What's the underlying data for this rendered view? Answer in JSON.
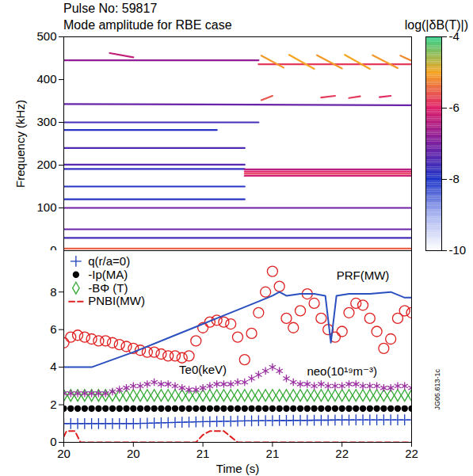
{
  "chart_data": [
    {
      "type": "spectrogram",
      "title": "Pulse No: 59817",
      "subtitle": "Mode amplitude for RBE case",
      "y_label": "Frequency (kHz)",
      "xlim": [
        20,
        22.5
      ],
      "ylim": [
        0,
        500
      ],
      "yticks": [
        0,
        100,
        200,
        300,
        400,
        500
      ],
      "tick_labels": "y",
      "colorbar": {
        "label": "log(|δB(T)|)",
        "clim": [
          -10,
          -4
        ],
        "ticks": [
          -10,
          -8,
          -6,
          -4
        ]
      },
      "modes": [
        {
          "t": [
            20,
            21.4
          ],
          "f": [
            445,
            445
          ],
          "amplitude": -6.8
        },
        {
          "t": [
            20.33,
            20.5
          ],
          "f": [
            462,
            452
          ],
          "amplitude": -6.3
        },
        {
          "t": [
            21.4,
            22.5
          ],
          "f": [
            436,
            436
          ],
          "amplitude": -5.8
        },
        {
          "t": [
            21.42,
            21.58
          ],
          "f": [
            456,
            428
          ],
          "amplitude": -5.1
        },
        {
          "t": [
            21.62,
            21.8
          ],
          "f": [
            458,
            425
          ],
          "amplitude": -5.0
        },
        {
          "t": [
            21.82,
            22.0
          ],
          "f": [
            457,
            426
          ],
          "amplitude": -5.1
        },
        {
          "t": [
            22.02,
            22.2
          ],
          "f": [
            458,
            425
          ],
          "amplitude": -5.0
        },
        {
          "t": [
            22.22,
            22.4
          ],
          "f": [
            457,
            427
          ],
          "amplitude": -5.1
        },
        {
          "t": [
            22.42,
            22.5
          ],
          "f": [
            456,
            444
          ],
          "amplitude": -5.2
        },
        {
          "t": [
            21.42,
            21.5
          ],
          "f": [
            352,
            362
          ],
          "amplitude": -5.6
        },
        {
          "t": [
            21.85,
            21.95
          ],
          "f": [
            358,
            362
          ],
          "amplitude": -5.8
        },
        {
          "t": [
            22.05,
            22.13
          ],
          "f": [
            357,
            361
          ],
          "amplitude": -5.8
        },
        {
          "t": [
            22.27,
            22.35
          ],
          "f": [
            359,
            362
          ],
          "amplitude": -5.9
        },
        {
          "t": [
            20,
            22.5
          ],
          "f": [
            343,
            340
          ],
          "amplitude": -7.2
        },
        {
          "t": [
            20,
            21.4
          ],
          "f": [
            300,
            300
          ],
          "amplitude": -7.6
        },
        {
          "t": [
            20,
            21.1
          ],
          "f": [
            282,
            282
          ],
          "amplitude": -7.9
        },
        {
          "t": [
            20,
            21.3
          ],
          "f": [
            240,
            240
          ],
          "amplitude": -7.5
        },
        {
          "t": [
            20,
            21.3
          ],
          "f": [
            201,
            201
          ],
          "amplitude": -7.4
        },
        {
          "t": [
            20,
            21.3
          ],
          "f": [
            191,
            191
          ],
          "amplitude": -7.8
        },
        {
          "t": [
            21.3,
            22.5
          ],
          "f": [
            190,
            190
          ],
          "amplitude": -6.4
        },
        {
          "t": [
            21.3,
            22.5
          ],
          "f": [
            185,
            185
          ],
          "amplitude": -6.0
        },
        {
          "t": [
            21.3,
            22.5
          ],
          "f": [
            180,
            180
          ],
          "amplitude": -5.8
        },
        {
          "t": [
            21.3,
            22.5
          ],
          "f": [
            175,
            175
          ],
          "amplitude": -6.2
        },
        {
          "t": [
            20,
            21.3
          ],
          "f": [
            150,
            150
          ],
          "amplitude": -7.9
        },
        {
          "t": [
            20,
            21.3
          ],
          "f": [
            120,
            120
          ],
          "amplitude": -7.9
        },
        {
          "t": [
            20,
            22.5
          ],
          "f": [
            100,
            100
          ],
          "amplitude": -7.1
        },
        {
          "t": [
            20,
            22.5
          ],
          "f": [
            50,
            50
          ],
          "amplitude": -7.2
        },
        {
          "t": [
            20,
            22.5
          ],
          "f": [
            30,
            30
          ],
          "amplitude": -7.6
        },
        {
          "t": [
            20,
            22.5
          ],
          "f": [
            5,
            5
          ],
          "amplitude": -5.5
        }
      ]
    },
    {
      "type": "line",
      "x_label": "Time (s)",
      "xlim": [
        20,
        22.5
      ],
      "xticks": [
        20,
        {
          "value": 20.5,
          "label": "20"
        },
        21,
        {
          "value": 21.5,
          "label": "21"
        },
        22,
        {
          "value": 22.5,
          "label": "22"
        }
      ],
      "ylim": [
        0,
        10.2
      ],
      "yticks": [
        0,
        2,
        4,
        6,
        8
      ],
      "legend": "top-left",
      "x": [
        20,
        20.05,
        20.1,
        20.15,
        20.2,
        20.25,
        20.3,
        20.35,
        20.4,
        20.45,
        20.5,
        20.55,
        20.6,
        20.65,
        20.7,
        20.75,
        20.8,
        20.85,
        20.9,
        20.95,
        21,
        21.05,
        21.1,
        21.15,
        21.2,
        21.25,
        21.3,
        21.35,
        21.4,
        21.45,
        21.5,
        21.55,
        21.6,
        21.65,
        21.7,
        21.75,
        21.8,
        21.85,
        21.9,
        21.95,
        22,
        22.05,
        22.1,
        22.15,
        22.2,
        22.25,
        22.3,
        22.35,
        22.4,
        22.45,
        22.5
      ],
      "series": [
        {
          "name": "q(r/a=0)",
          "type": "scatter",
          "marker": "plus",
          "color": "#1f3fbf",
          "values": [
            1.0,
            1.0,
            1.0,
            1.0,
            1.0,
            1.0,
            1.0,
            1.0,
            1.0,
            1.0,
            1.0,
            1.01,
            1.02,
            1.03,
            1.04,
            1.05,
            1.06,
            1.07,
            1.08,
            1.09,
            1.1,
            1.1,
            1.11,
            1.12,
            1.12,
            1.13,
            1.14,
            1.14,
            1.15,
            1.15,
            1.15,
            1.16,
            1.16,
            1.17,
            1.17,
            1.17,
            1.18,
            1.18,
            1.18,
            1.19,
            1.19,
            1.19,
            1.2,
            1.2,
            1.2,
            1.2,
            1.2,
            1.2,
            1.2,
            1.2,
            1.2
          ]
        },
        {
          "name": "-Ip(MA)",
          "type": "scatter",
          "marker": "dot",
          "color": "#000000",
          "values": [
            1.8,
            1.8,
            1.8,
            1.8,
            1.8,
            1.8,
            1.8,
            1.8,
            1.8,
            1.8,
            1.8,
            1.8,
            1.8,
            1.8,
            1.8,
            1.8,
            1.8,
            1.8,
            1.8,
            1.8,
            1.8,
            1.8,
            1.8,
            1.8,
            1.8,
            1.8,
            1.8,
            1.8,
            1.8,
            1.8,
            1.8,
            1.8,
            1.8,
            1.8,
            1.8,
            1.8,
            1.8,
            1.8,
            1.8,
            1.8,
            1.8,
            1.8,
            1.8,
            1.8,
            1.8,
            1.8,
            1.8,
            1.8,
            1.8,
            1.8,
            1.8
          ]
        },
        {
          "name": "-BΦ (T)",
          "type": "scatter",
          "marker": "diamond",
          "color": "#33aa33",
          "values": [
            2.5,
            2.5,
            2.5,
            2.5,
            2.5,
            2.5,
            2.5,
            2.5,
            2.5,
            2.5,
            2.5,
            2.5,
            2.5,
            2.5,
            2.5,
            2.5,
            2.5,
            2.5,
            2.5,
            2.5,
            2.5,
            2.5,
            2.5,
            2.5,
            2.5,
            2.5,
            2.5,
            2.5,
            2.5,
            2.5,
            2.5,
            2.5,
            2.5,
            2.5,
            2.5,
            2.5,
            2.5,
            2.5,
            2.5,
            2.5,
            2.5,
            2.5,
            2.5,
            2.5,
            2.5,
            2.5,
            2.5,
            2.5,
            2.5,
            2.5,
            2.5
          ]
        },
        {
          "name": "PNBI(MW)",
          "type": "line",
          "line_style": "dashed",
          "color": "#e02020",
          "x": [
            20,
            20.02,
            20.08,
            20.12,
            20.95,
            21,
            21.05,
            21.15,
            21.2,
            21.25,
            22.5
          ],
          "values": [
            0.3,
            0.6,
            0.6,
            0,
            0,
            0.4,
            0.6,
            0.6,
            0.3,
            0,
            0
          ]
        },
        {
          "name": "Te0(keV)",
          "type": "scatter",
          "marker": "circle",
          "color": "#e02020",
          "values": [
            5.3,
            5.6,
            5.7,
            5.6,
            5.5,
            5.4,
            5.4,
            5.3,
            5.2,
            5.1,
            5.0,
            4.9,
            4.8,
            4.8,
            4.7,
            4.6,
            4.6,
            4.5,
            4.6,
            5.4,
            6.1,
            6.4,
            6.5,
            6.4,
            6.3,
            5.6,
            4.4,
            5.8,
            6.9,
            8.0,
            9.1,
            8.3,
            6.6,
            6.1,
            7.0,
            7.9,
            7.4,
            6.6,
            6.0,
            5.6,
            5.9,
            6.9,
            7.4,
            7.3,
            6.6,
            5.9,
            5.0,
            5.5,
            6.6,
            7.0,
            6.9
          ]
        },
        {
          "name": "PRF(MW)",
          "type": "line",
          "line_style": "solid",
          "color": "#2a4fbf",
          "x": [
            20,
            20.2,
            20.5,
            20.8,
            21.1,
            21.4,
            21.5,
            21.55,
            21.6,
            21.7,
            21.8,
            21.88,
            21.92,
            21.96,
            22.05,
            22.2,
            22.35,
            22.45,
            22.5
          ],
          "values": [
            4.0,
            4.0,
            4.8,
            5.7,
            6.6,
            7.5,
            7.8,
            8.0,
            7.8,
            7.9,
            7.9,
            7.8,
            5.3,
            7.8,
            7.9,
            7.9,
            8.0,
            7.7,
            7.7
          ]
        },
        {
          "name": "neo(10¹⁹m⁻³)",
          "type": "scatter",
          "marker": "asterisk",
          "color": "#9a2fa0",
          "values": [
            2.6,
            2.6,
            2.6,
            2.6,
            2.6,
            2.6,
            2.6,
            2.7,
            2.8,
            2.9,
            3.0,
            3.0,
            3.1,
            3.2,
            3.1,
            3.1,
            3.0,
            2.9,
            2.8,
            2.8,
            2.9,
            3.0,
            3.1,
            3.1,
            3.1,
            3.2,
            3.2,
            3.4,
            3.6,
            3.8,
            4.0,
            3.8,
            3.4,
            3.2,
            3.1,
            3.1,
            3.0,
            3.1,
            3.0,
            3.0,
            3.0,
            3.1,
            3.1,
            3.0,
            3.0,
            3.0,
            2.9,
            2.9,
            3.0,
            3.0,
            2.9
          ]
        }
      ],
      "annotations": [
        {
          "text": "PRF(MW)",
          "x": 22.15,
          "y": 8.85
        },
        {
          "text": "Te0(keV)",
          "x": 21.0,
          "y": 3.85
        },
        {
          "text": "neo(10¹⁹m⁻³)",
          "x": 22.0,
          "y": 3.75
        }
      ],
      "credit": "JG05.613-1c"
    }
  ]
}
